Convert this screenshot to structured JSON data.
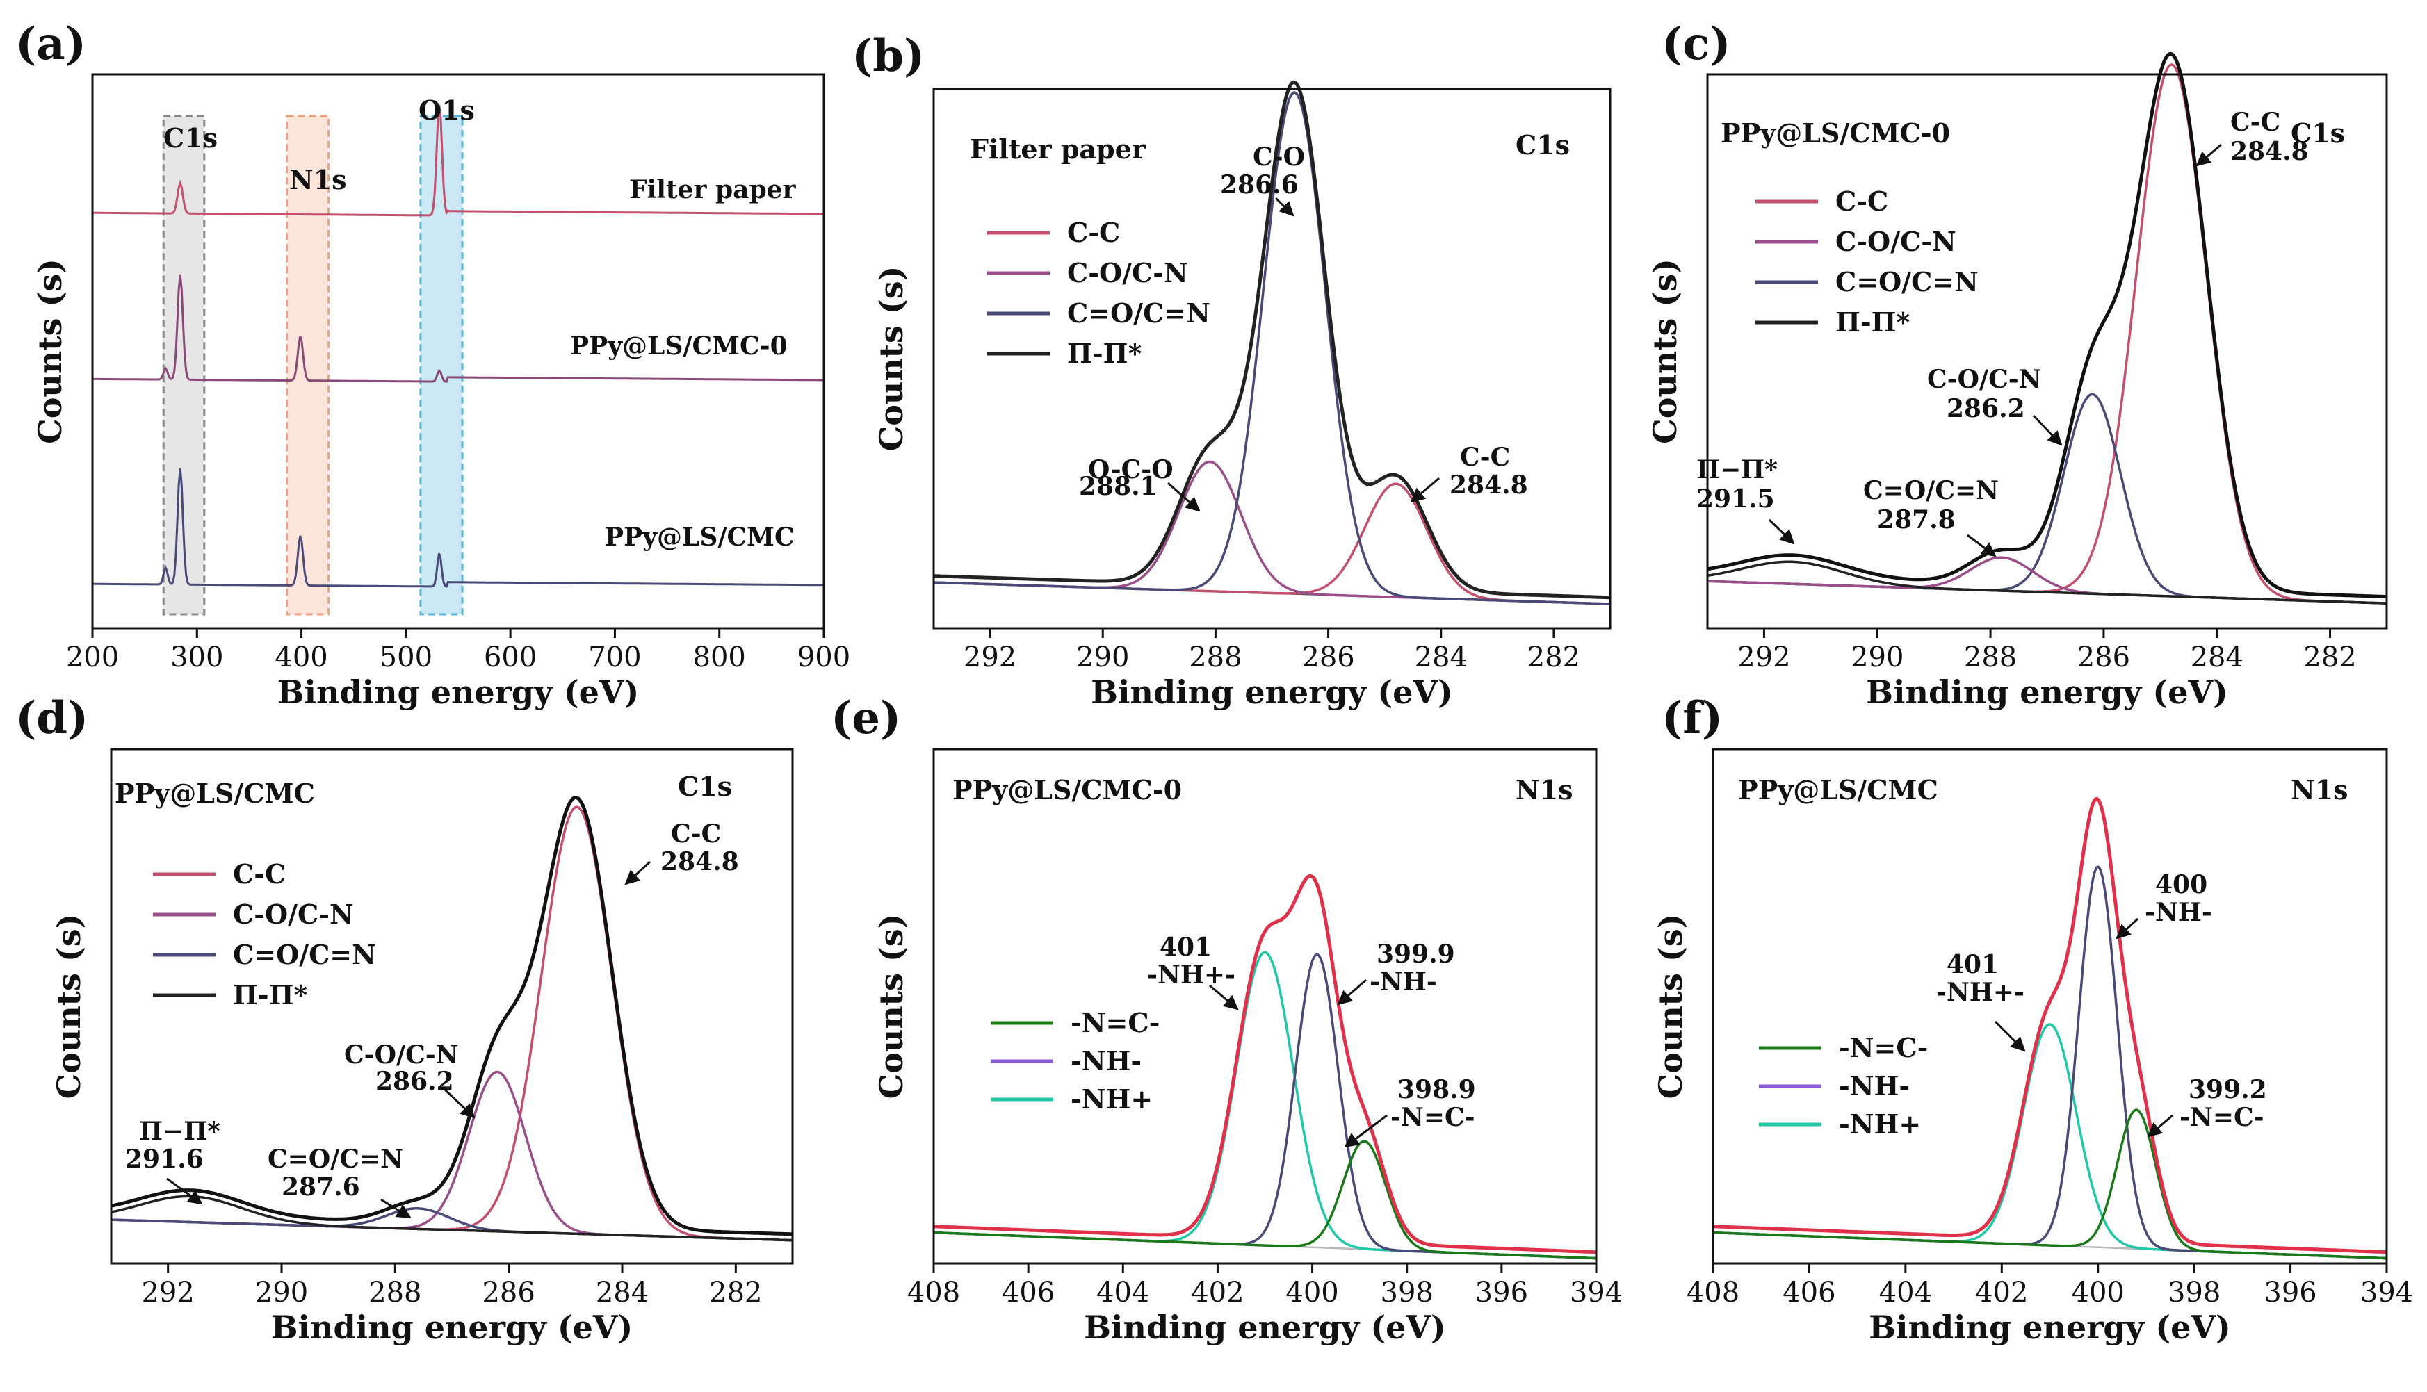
{
  "chart_data": [
    {
      "panel": "(a)",
      "type": "line",
      "title": "",
      "xlabel": "Binding energy (eV)",
      "ylabel": "Counts (s)",
      "xlim": [
        200,
        900
      ],
      "xticks": [
        200,
        300,
        400,
        500,
        600,
        700,
        800,
        900
      ],
      "series": [
        {
          "name": "Filter paper",
          "color": "#c4506e",
          "baseline": 0.75,
          "peaks": [
            {
              "x": 284,
              "h": 0.055,
              "w": 2.5
            },
            {
              "x": 532,
              "h": 0.2,
              "w": 2.5
            }
          ]
        },
        {
          "name": "PPy@LS/CMC-0",
          "color": "#8a4a78",
          "baseline": 0.45,
          "peaks": [
            {
              "x": 270,
              "h": 0.02,
              "w": 2
            },
            {
              "x": 284,
              "h": 0.19,
              "w": 2.5
            },
            {
              "x": 399,
              "h": 0.08,
              "w": 2.5
            },
            {
              "x": 532,
              "h": 0.02,
              "w": 2
            }
          ]
        },
        {
          "name": "PPy@LS/CMC",
          "color": "#4a4a78",
          "baseline": 0.08,
          "peaks": [
            {
              "x": 270,
              "h": 0.03,
              "w": 2
            },
            {
              "x": 284,
              "h": 0.21,
              "w": 2.5
            },
            {
              "x": 399,
              "h": 0.09,
              "w": 2.5
            },
            {
              "x": 532,
              "h": 0.06,
              "w": 2
            }
          ]
        }
      ],
      "regions": [
        {
          "label": "C1s",
          "x0": 268,
          "x1": 307,
          "color": "#888888",
          "fill": "#e6e6e6"
        },
        {
          "label": "N1s",
          "x0": 386,
          "x1": 426,
          "color": "#f0a080",
          "fill": "#fde5dc"
        },
        {
          "label": "O1s",
          "x0": 514,
          "x1": 554,
          "color": "#5ab4d6",
          "fill": "#cbe9f4"
        }
      ]
    },
    {
      "panel": "(b)",
      "type": "line",
      "sample": "Filter paper",
      "region": "C1s",
      "xlabel": "Binding energy (eV)",
      "ylabel": "Counts (s)",
      "xlim": [
        293,
        281
      ],
      "xticks": [
        292,
        290,
        288,
        286,
        284,
        282
      ],
      "legend": [
        "C-C",
        "C-O/C-N",
        "C=O/C=N",
        "Π-Π*"
      ],
      "components": [
        {
          "name": "C-C",
          "center": 284.8,
          "height": 0.21,
          "sigma": 0.55,
          "color": "#c4506e"
        },
        {
          "name": "O-C-O",
          "center": 288.1,
          "height": 0.24,
          "sigma": 0.55,
          "color": "#9a4e8a"
        },
        {
          "name": "C-O",
          "center": 286.6,
          "height": 0.93,
          "sigma": 0.55,
          "color": "#4a4a78"
        }
      ],
      "envelope": {
        "name": "Π-Π*",
        "color": "#222222"
      },
      "annotations": [
        {
          "label": "C-O",
          "value": "286.6"
        },
        {
          "label": "O-C-O",
          "value": "288.1"
        },
        {
          "label": "C-C",
          "value": "284.8"
        }
      ]
    },
    {
      "panel": "(c)",
      "type": "line",
      "sample": "PPy@LS/CMC-0",
      "region": "C1s",
      "xlabel": "Binding energy (eV)",
      "ylabel": "Counts (s)",
      "xlim": [
        293,
        281
      ],
      "xticks": [
        292,
        290,
        288,
        286,
        284,
        282
      ],
      "legend": [
        "C-C",
        "C-O/C-N",
        "C=O/C=N",
        "Π-Π*"
      ],
      "components": [
        {
          "name": "C-C",
          "center": 284.8,
          "height": 0.96,
          "sigma": 0.62,
          "color": "#c4506e"
        },
        {
          "name": "C-O/C-N",
          "center": 286.2,
          "height": 0.36,
          "sigma": 0.5,
          "color": "#4a4a78"
        },
        {
          "name": "C=O/C=N",
          "center": 287.8,
          "height": 0.06,
          "sigma": 0.55,
          "color": "#9a4e8a"
        },
        {
          "name": "Π-Π*",
          "center": 291.5,
          "height": 0.04,
          "sigma": 0.9,
          "color": "#222222"
        }
      ],
      "envelope": {
        "name": "Π-Π*",
        "color": "#111111"
      },
      "annotations": [
        {
          "label": "C-C",
          "value": "284.8"
        },
        {
          "label": "C-O/C-N",
          "value": "286.2"
        },
        {
          "label": "C=O/C=N",
          "value": "287.8"
        },
        {
          "label": "Π−Π*",
          "value": "291.5"
        }
      ]
    },
    {
      "panel": "(d)",
      "type": "line",
      "sample": "PPy@LS/CMC",
      "region": "C1s",
      "xlabel": "Binding energy (eV)",
      "ylabel": "Counts (s)",
      "xlim": [
        293,
        281
      ],
      "xticks": [
        292,
        290,
        288,
        286,
        284,
        282
      ],
      "legend": [
        "C-C",
        "C-O/C-N",
        "C=O/C=N",
        "Π-Π*"
      ],
      "components": [
        {
          "name": "C-C",
          "center": 284.8,
          "height": 0.83,
          "sigma": 0.62,
          "color": "#c4506e"
        },
        {
          "name": "C-O/C-N",
          "center": 286.2,
          "height": 0.31,
          "sigma": 0.5,
          "color": "#9a4e8a"
        },
        {
          "name": "C=O/C=N",
          "center": 287.6,
          "height": 0.04,
          "sigma": 0.55,
          "color": "#4a4a78"
        },
        {
          "name": "Π-Π*",
          "center": 291.6,
          "height": 0.05,
          "sigma": 0.9,
          "color": "#222222"
        }
      ],
      "envelope": {
        "name": "Π-Π*",
        "color": "#111111"
      },
      "annotations": [
        {
          "label": "C-C",
          "value": "284.8"
        },
        {
          "label": "C-O/C-N",
          "value": "286.2"
        },
        {
          "label": "C=O/C=N",
          "value": "287.6"
        },
        {
          "label": "Π−Π*",
          "value": "291.6"
        }
      ]
    },
    {
      "panel": "(e)",
      "type": "line",
      "sample": "PPy@LS/CMC-0",
      "region": "N1s",
      "xlabel": "Binding energy (eV)",
      "ylabel": "Counts (s)",
      "xlim": [
        408,
        394
      ],
      "xticks": [
        408,
        406,
        404,
        402,
        400,
        398,
        396,
        394
      ],
      "legend": [
        "-N=C-",
        "-NH-",
        "-NH+"
      ],
      "components": [
        {
          "name": "-NH+",
          "center": 401.0,
          "height": 0.57,
          "sigma": 0.6,
          "color": "#1fc9a8"
        },
        {
          "name": "-NH-",
          "center": 399.9,
          "height": 0.57,
          "sigma": 0.45,
          "color": "#4a4a78"
        },
        {
          "name": "-N=C-",
          "center": 398.9,
          "height": 0.21,
          "sigma": 0.45,
          "color": "#1a7a1a"
        }
      ],
      "envelope": {
        "name": "total",
        "color": "#e0304a"
      },
      "annotations": [
        {
          "label": "401",
          "value": "-NH+-"
        },
        {
          "label": "399.9",
          "value": "-NH-"
        },
        {
          "label": "398.9",
          "value": "-N=C-"
        }
      ]
    },
    {
      "panel": "(f)",
      "type": "line",
      "sample": "PPy@LS/CMC",
      "region": "N1s",
      "xlabel": "Binding energy (eV)",
      "ylabel": "Counts (s)",
      "xlim": [
        408,
        394
      ],
      "xticks": [
        408,
        406,
        404,
        402,
        400,
        398,
        396,
        394
      ],
      "legend": [
        "-N=C-",
        "-NH-",
        "-NH+"
      ],
      "components": [
        {
          "name": "-NH+",
          "center": 401.0,
          "height": 0.43,
          "sigma": 0.55,
          "color": "#1fc9a8"
        },
        {
          "name": "-NH-",
          "center": 400.0,
          "height": 0.74,
          "sigma": 0.4,
          "color": "#4a4a78"
        },
        {
          "name": "-N=C-",
          "center": 399.2,
          "height": 0.27,
          "sigma": 0.4,
          "color": "#1a7a1a"
        }
      ],
      "envelope": {
        "name": "total",
        "color": "#e0304a"
      },
      "annotations": [
        {
          "label": "401",
          "value": "-NH+-"
        },
        {
          "label": "400",
          "value": "-NH-"
        },
        {
          "label": "399.2",
          "value": "-N=C-"
        }
      ]
    }
  ],
  "text": {
    "a": {
      "panel_label": "(a)",
      "region_c1s": "C1s",
      "region_n1s": "N1s",
      "region_o1s": "O1s",
      "series1": "Filter paper",
      "series2": "PPy@LS/CMC-0",
      "series3": "PPy@LS/CMC"
    },
    "b": {
      "panel_label": "(b)",
      "sample": "Filter paper",
      "region": "C1s",
      "ann_co": "C-O",
      "ann_co_val": "286.6",
      "ann_oco": "O-C-O",
      "ann_oco_val": "288.1",
      "ann_cc": "C-C",
      "ann_cc_val": "284.8"
    },
    "c": {
      "panel_label": "(c)",
      "sample": "PPy@LS/CMC-0",
      "region": "C1s",
      "ann_cc": "C-C",
      "ann_cc_val": "284.8",
      "ann_con": "C-O/C-N",
      "ann_con_val": "286.2",
      "ann_ocn": "C=O/C=N",
      "ann_ocn_val": "287.8",
      "ann_pi": "Π−Π*",
      "ann_pi_val": "291.5"
    },
    "d": {
      "panel_label": "(d)",
      "sample": "PPy@LS/CMC",
      "region": "C1s",
      "ann_cc": "C-C",
      "ann_cc_val": "284.8",
      "ann_con": "C-O/C-N",
      "ann_con_val": "286.2",
      "ann_ocn": "C=O/C=N",
      "ann_ocn_val": "287.6",
      "ann_pi": "Π−Π*",
      "ann_pi_val": "291.6"
    },
    "e": {
      "panel_label": "(e)",
      "sample": "PPy@LS/CMC-0",
      "region": "N1s",
      "ann_1_top": "401",
      "ann_1_bot": "-NH+-",
      "ann_2_top": "399.9",
      "ann_2_bot": "-NH-",
      "ann_3_top": "398.9",
      "ann_3_bot": "-N=C-"
    },
    "f": {
      "panel_label": "(f)",
      "sample": "PPy@LS/CMC",
      "region": "N1s",
      "ann_1_top": "401",
      "ann_1_bot": "-NH+-",
      "ann_2_top": "400",
      "ann_2_bot": "-NH-",
      "ann_3_top": "399.2",
      "ann_3_bot": "-N=C-"
    }
  }
}
